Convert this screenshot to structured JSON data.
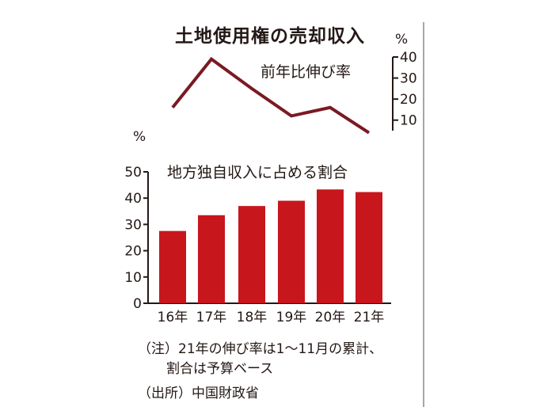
{
  "title": "土地使用権の売却収入",
  "colors": {
    "line": "#7a1a22",
    "bar": "#c8161d",
    "axis": "#231815",
    "frame": "#888888"
  },
  "chart_data": [
    {
      "type": "line",
      "name": "前年比伸び率",
      "unit": "%",
      "x": [
        "16年",
        "17年",
        "18年",
        "19年",
        "20年",
        "21年"
      ],
      "values": [
        16,
        39,
        25,
        12,
        16,
        4
      ],
      "ylim": [
        0,
        45
      ],
      "yticks": [
        10,
        20,
        30,
        40
      ],
      "ytick_labels": [
        "10",
        "20",
        "30",
        "40"
      ],
      "axis_side": "right"
    },
    {
      "type": "bar",
      "name": "地方独自収入に占める割合",
      "unit": "%",
      "categories": [
        "16年",
        "17年",
        "18年",
        "19年",
        "20年",
        "21年"
      ],
      "values": [
        27.5,
        33.5,
        37,
        39,
        43.3,
        42.3
      ],
      "ylim": [
        0,
        50
      ],
      "yticks": [
        0,
        10,
        20,
        30,
        40,
        50
      ],
      "ytick_labels": [
        "0",
        "10",
        "20",
        "30",
        "40",
        "50"
      ],
      "axis_side": "left"
    }
  ],
  "notes": {
    "note_line1": "（注）21年の伸び率は1～11月の累計、",
    "note_line2": "割合は予算ベース",
    "source": "（出所）中国財政省"
  }
}
